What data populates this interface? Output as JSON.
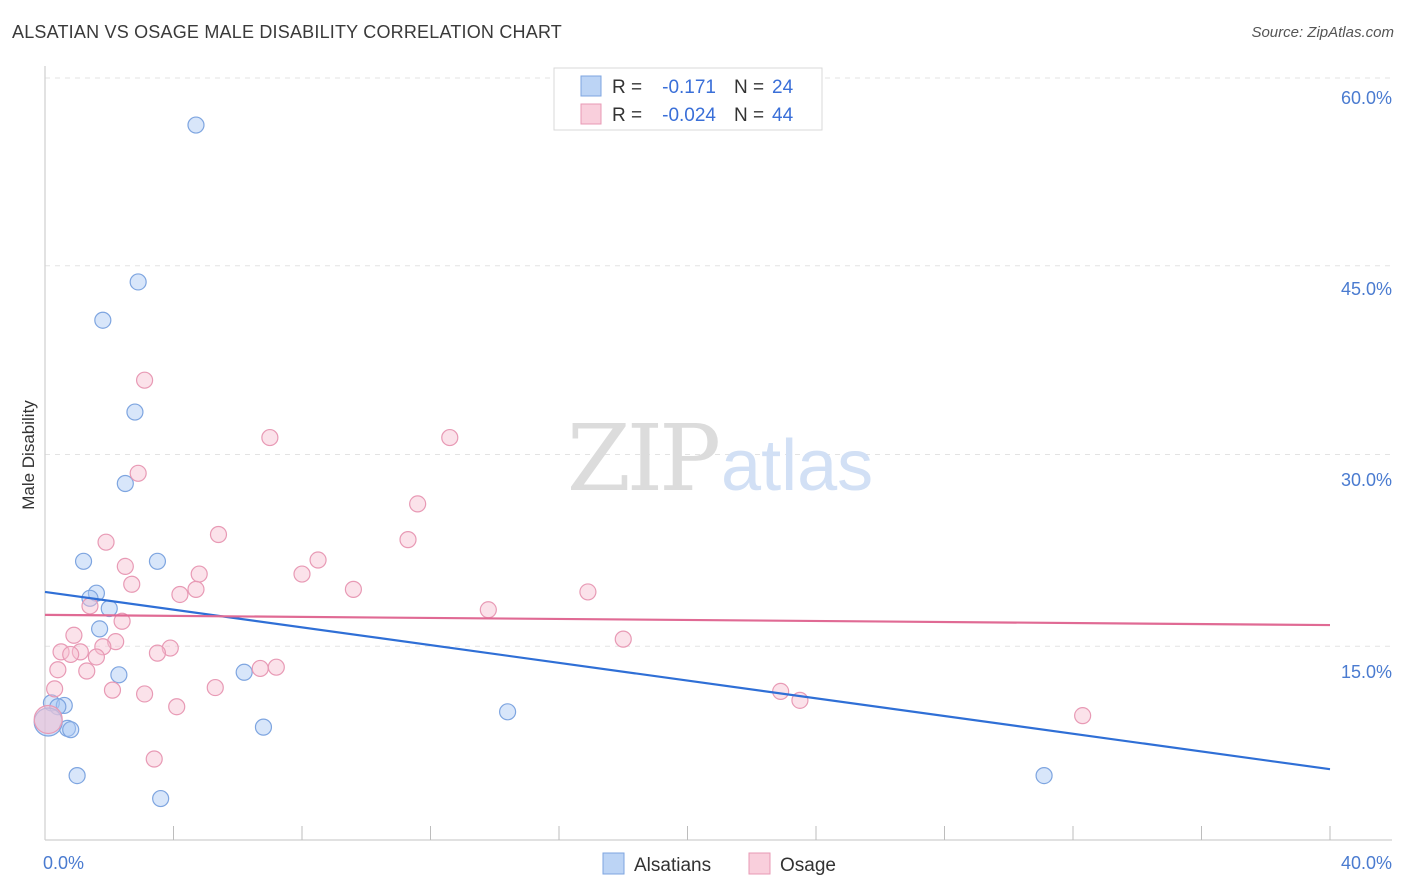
{
  "title": "ALSATIAN VS OSAGE MALE DISABILITY CORRELATION CHART",
  "source": "Source: ZipAtlas.com",
  "chart_data": {
    "type": "scatter",
    "title": "ALSATIAN VS OSAGE MALE DISABILITY CORRELATION CHART",
    "xlabel": "",
    "ylabel": "Male Disability",
    "xlim": [
      0,
      40
    ],
    "ylim": [
      0,
      60
    ],
    "x_tick_labels": [
      "0.0%",
      "40.0%"
    ],
    "y_ticks": [
      15,
      30,
      45,
      60
    ],
    "y_tick_labels": [
      "15.0%",
      "30.0%",
      "45.0%",
      "60.0%"
    ],
    "watermark": "ZIPatlas",
    "series": [
      {
        "name": "Alsatians",
        "color": "#a8c8f5",
        "line_color": "#2f6fd6",
        "r_label": "R =",
        "r_value": "-0.171",
        "n_label": "N =",
        "n_value": "24",
        "trend": {
          "x": [
            0,
            40
          ],
          "y": [
            21.2,
            7.3
          ]
        },
        "points": [
          {
            "x": 4.7,
            "y": 57.8
          },
          {
            "x": 2.9,
            "y": 45.5
          },
          {
            "x": 1.8,
            "y": 42.5
          },
          {
            "x": 2.8,
            "y": 35.3
          },
          {
            "x": 2.5,
            "y": 29.7
          },
          {
            "x": 1.2,
            "y": 23.6
          },
          {
            "x": 3.5,
            "y": 23.6
          },
          {
            "x": 1.6,
            "y": 21.1
          },
          {
            "x": 1.4,
            "y": 20.7
          },
          {
            "x": 2.0,
            "y": 19.9
          },
          {
            "x": 1.7,
            "y": 18.3
          },
          {
            "x": 2.3,
            "y": 14.7
          },
          {
            "x": 6.2,
            "y": 14.9
          },
          {
            "x": 0.2,
            "y": 12.5
          },
          {
            "x": 0.6,
            "y": 12.3
          },
          {
            "x": 0.4,
            "y": 12.2
          },
          {
            "x": 0.7,
            "y": 10.5
          },
          {
            "x": 0.8,
            "y": 10.4
          },
          {
            "x": 6.8,
            "y": 10.6
          },
          {
            "x": 14.4,
            "y": 11.8
          },
          {
            "x": 1.0,
            "y": 6.8
          },
          {
            "x": 3.6,
            "y": 5.0
          },
          {
            "x": 31.1,
            "y": 6.8
          },
          {
            "x": 0.1,
            "y": 11.0
          }
        ]
      },
      {
        "name": "Osage",
        "color": "#f7bfd0",
        "line_color": "#e06a94",
        "r_label": "R =",
        "r_value": "-0.024",
        "n_label": "N =",
        "n_value": "44",
        "trend": {
          "x": [
            0,
            40
          ],
          "y": [
            19.4,
            18.6
          ]
        },
        "points": [
          {
            "x": 3.1,
            "y": 37.8
          },
          {
            "x": 7.0,
            "y": 33.3
          },
          {
            "x": 12.6,
            "y": 33.3
          },
          {
            "x": 2.9,
            "y": 30.5
          },
          {
            "x": 11.6,
            "y": 28.1
          },
          {
            "x": 5.4,
            "y": 25.7
          },
          {
            "x": 11.3,
            "y": 25.3
          },
          {
            "x": 1.9,
            "y": 25.1
          },
          {
            "x": 8.5,
            "y": 23.7
          },
          {
            "x": 2.5,
            "y": 23.2
          },
          {
            "x": 4.8,
            "y": 22.6
          },
          {
            "x": 8.0,
            "y": 22.6
          },
          {
            "x": 2.7,
            "y": 21.8
          },
          {
            "x": 9.6,
            "y": 21.4
          },
          {
            "x": 4.7,
            "y": 21.4
          },
          {
            "x": 4.2,
            "y": 21.0
          },
          {
            "x": 16.9,
            "y": 21.2
          },
          {
            "x": 1.4,
            "y": 20.1
          },
          {
            "x": 13.8,
            "y": 19.8
          },
          {
            "x": 2.4,
            "y": 18.9
          },
          {
            "x": 0.9,
            "y": 17.8
          },
          {
            "x": 2.2,
            "y": 17.3
          },
          {
            "x": 1.8,
            "y": 16.9
          },
          {
            "x": 18.0,
            "y": 17.5
          },
          {
            "x": 3.9,
            "y": 16.8
          },
          {
            "x": 0.5,
            "y": 16.5
          },
          {
            "x": 1.1,
            "y": 16.5
          },
          {
            "x": 3.5,
            "y": 16.4
          },
          {
            "x": 0.8,
            "y": 16.3
          },
          {
            "x": 1.6,
            "y": 16.1
          },
          {
            "x": 0.4,
            "y": 15.1
          },
          {
            "x": 1.3,
            "y": 15.0
          },
          {
            "x": 6.7,
            "y": 15.2
          },
          {
            "x": 7.2,
            "y": 15.3
          },
          {
            "x": 5.3,
            "y": 13.7
          },
          {
            "x": 0.3,
            "y": 13.6
          },
          {
            "x": 2.1,
            "y": 13.5
          },
          {
            "x": 3.1,
            "y": 13.2
          },
          {
            "x": 22.9,
            "y": 13.4
          },
          {
            "x": 23.5,
            "y": 12.7
          },
          {
            "x": 4.1,
            "y": 12.2
          },
          {
            "x": 32.3,
            "y": 11.5
          },
          {
            "x": 3.4,
            "y": 8.1
          },
          {
            "x": 0.1,
            "y": 11.2
          }
        ]
      }
    ]
  }
}
